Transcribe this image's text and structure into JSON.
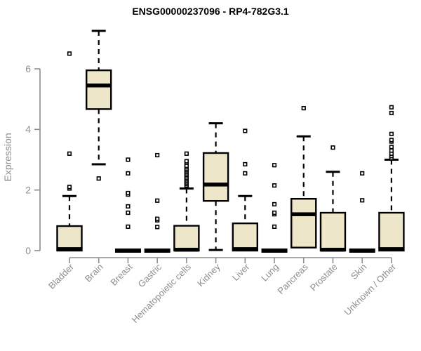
{
  "chart_data": {
    "type": "boxplot",
    "title": "ENSG00000237096 - RP4-782G3.1",
    "ylabel": "Expression",
    "xlabel": "",
    "yticks": [
      0,
      2,
      4,
      6
    ],
    "ylim": [
      0,
      7.4
    ],
    "grid": false,
    "legend": null,
    "colors": {
      "box_fill": "#ede6c8",
      "box_stroke": "#000000",
      "median": "#000000",
      "whisker": "#000000",
      "outlier_stroke": "#000000",
      "outlier_fill": "#ffffff",
      "axis": "#8e8e8e",
      "tick_label": "#8e8e8e",
      "title": "#000000"
    },
    "categories": [
      "Bladder",
      "Brain",
      "Breast",
      "Gastric",
      "Hematopoietic cells",
      "Kidney",
      "Liver",
      "Lung",
      "Pancreas",
      "Prostate",
      "Skin",
      "Unknown / Other"
    ],
    "series": [
      {
        "category": "Bladder",
        "whisker_low": 0,
        "q1": 0,
        "median": 0.05,
        "q3": 0.81,
        "whisker_high": 1.8,
        "outliers": [
          2.05,
          2.1,
          3.2,
          6.5
        ]
      },
      {
        "category": "Brain",
        "whisker_low": 2.85,
        "q1": 4.67,
        "median": 5.45,
        "q3": 5.95,
        "whisker_high": 7.25,
        "outliers": [
          2.38
        ]
      },
      {
        "category": "Breast",
        "whisker_low": 0,
        "q1": 0,
        "median": 0,
        "q3": 0,
        "whisker_high": 0,
        "outliers": [
          0.79,
          1.25,
          1.46,
          1.85,
          1.9,
          2.55,
          3.0
        ]
      },
      {
        "category": "Gastric",
        "whisker_low": 0,
        "q1": 0,
        "median": 0,
        "q3": 0,
        "whisker_high": 0,
        "outliers": [
          0.78,
          1.0,
          1.05,
          1.65,
          3.15
        ]
      },
      {
        "category": "Hematopoietic cells",
        "whisker_low": 0,
        "q1": 0,
        "median": 0.03,
        "q3": 0.82,
        "whisker_high": 2.05,
        "outliers": [
          2.15,
          2.2,
          2.25,
          2.3,
          2.35,
          2.4,
          2.45,
          2.5,
          2.55,
          2.6,
          2.65,
          2.7,
          2.75,
          2.8,
          2.9,
          2.95,
          3.2
        ]
      },
      {
        "category": "Kidney",
        "whisker_low": 0.02,
        "q1": 1.64,
        "median": 2.18,
        "q3": 3.22,
        "whisker_high": 4.2,
        "outliers": []
      },
      {
        "category": "Liver",
        "whisker_low": 0,
        "q1": 0,
        "median": 0.05,
        "q3": 0.9,
        "whisker_high": 1.8,
        "outliers": [
          2.55,
          2.85,
          3.95
        ]
      },
      {
        "category": "Lung",
        "whisker_low": 0,
        "q1": 0,
        "median": 0,
        "q3": 0,
        "whisker_high": 0,
        "outliers": [
          0.79,
          1.2,
          1.25,
          1.53,
          2.15,
          2.82
        ]
      },
      {
        "category": "Pancreas",
        "whisker_low": 0.1,
        "q1": 0.1,
        "median": 1.2,
        "q3": 1.71,
        "whisker_high": 3.77,
        "outliers": [
          4.7
        ]
      },
      {
        "category": "Prostate",
        "whisker_low": 0,
        "q1": 0,
        "median": 0.03,
        "q3": 1.25,
        "whisker_high": 2.6,
        "outliers": [
          3.4
        ]
      },
      {
        "category": "Skin",
        "whisker_low": 0,
        "q1": 0,
        "median": 0,
        "q3": 0,
        "whisker_high": 0,
        "outliers": [
          1.66,
          2.55
        ]
      },
      {
        "category": "Unknown / Other",
        "whisker_low": 0,
        "q1": 0,
        "median": 0.05,
        "q3": 1.25,
        "whisker_high": 3.0,
        "outliers": [
          3.05,
          3.12,
          3.2,
          3.3,
          3.42,
          3.6,
          3.65,
          3.85,
          4.54,
          4.73
        ]
      }
    ]
  }
}
